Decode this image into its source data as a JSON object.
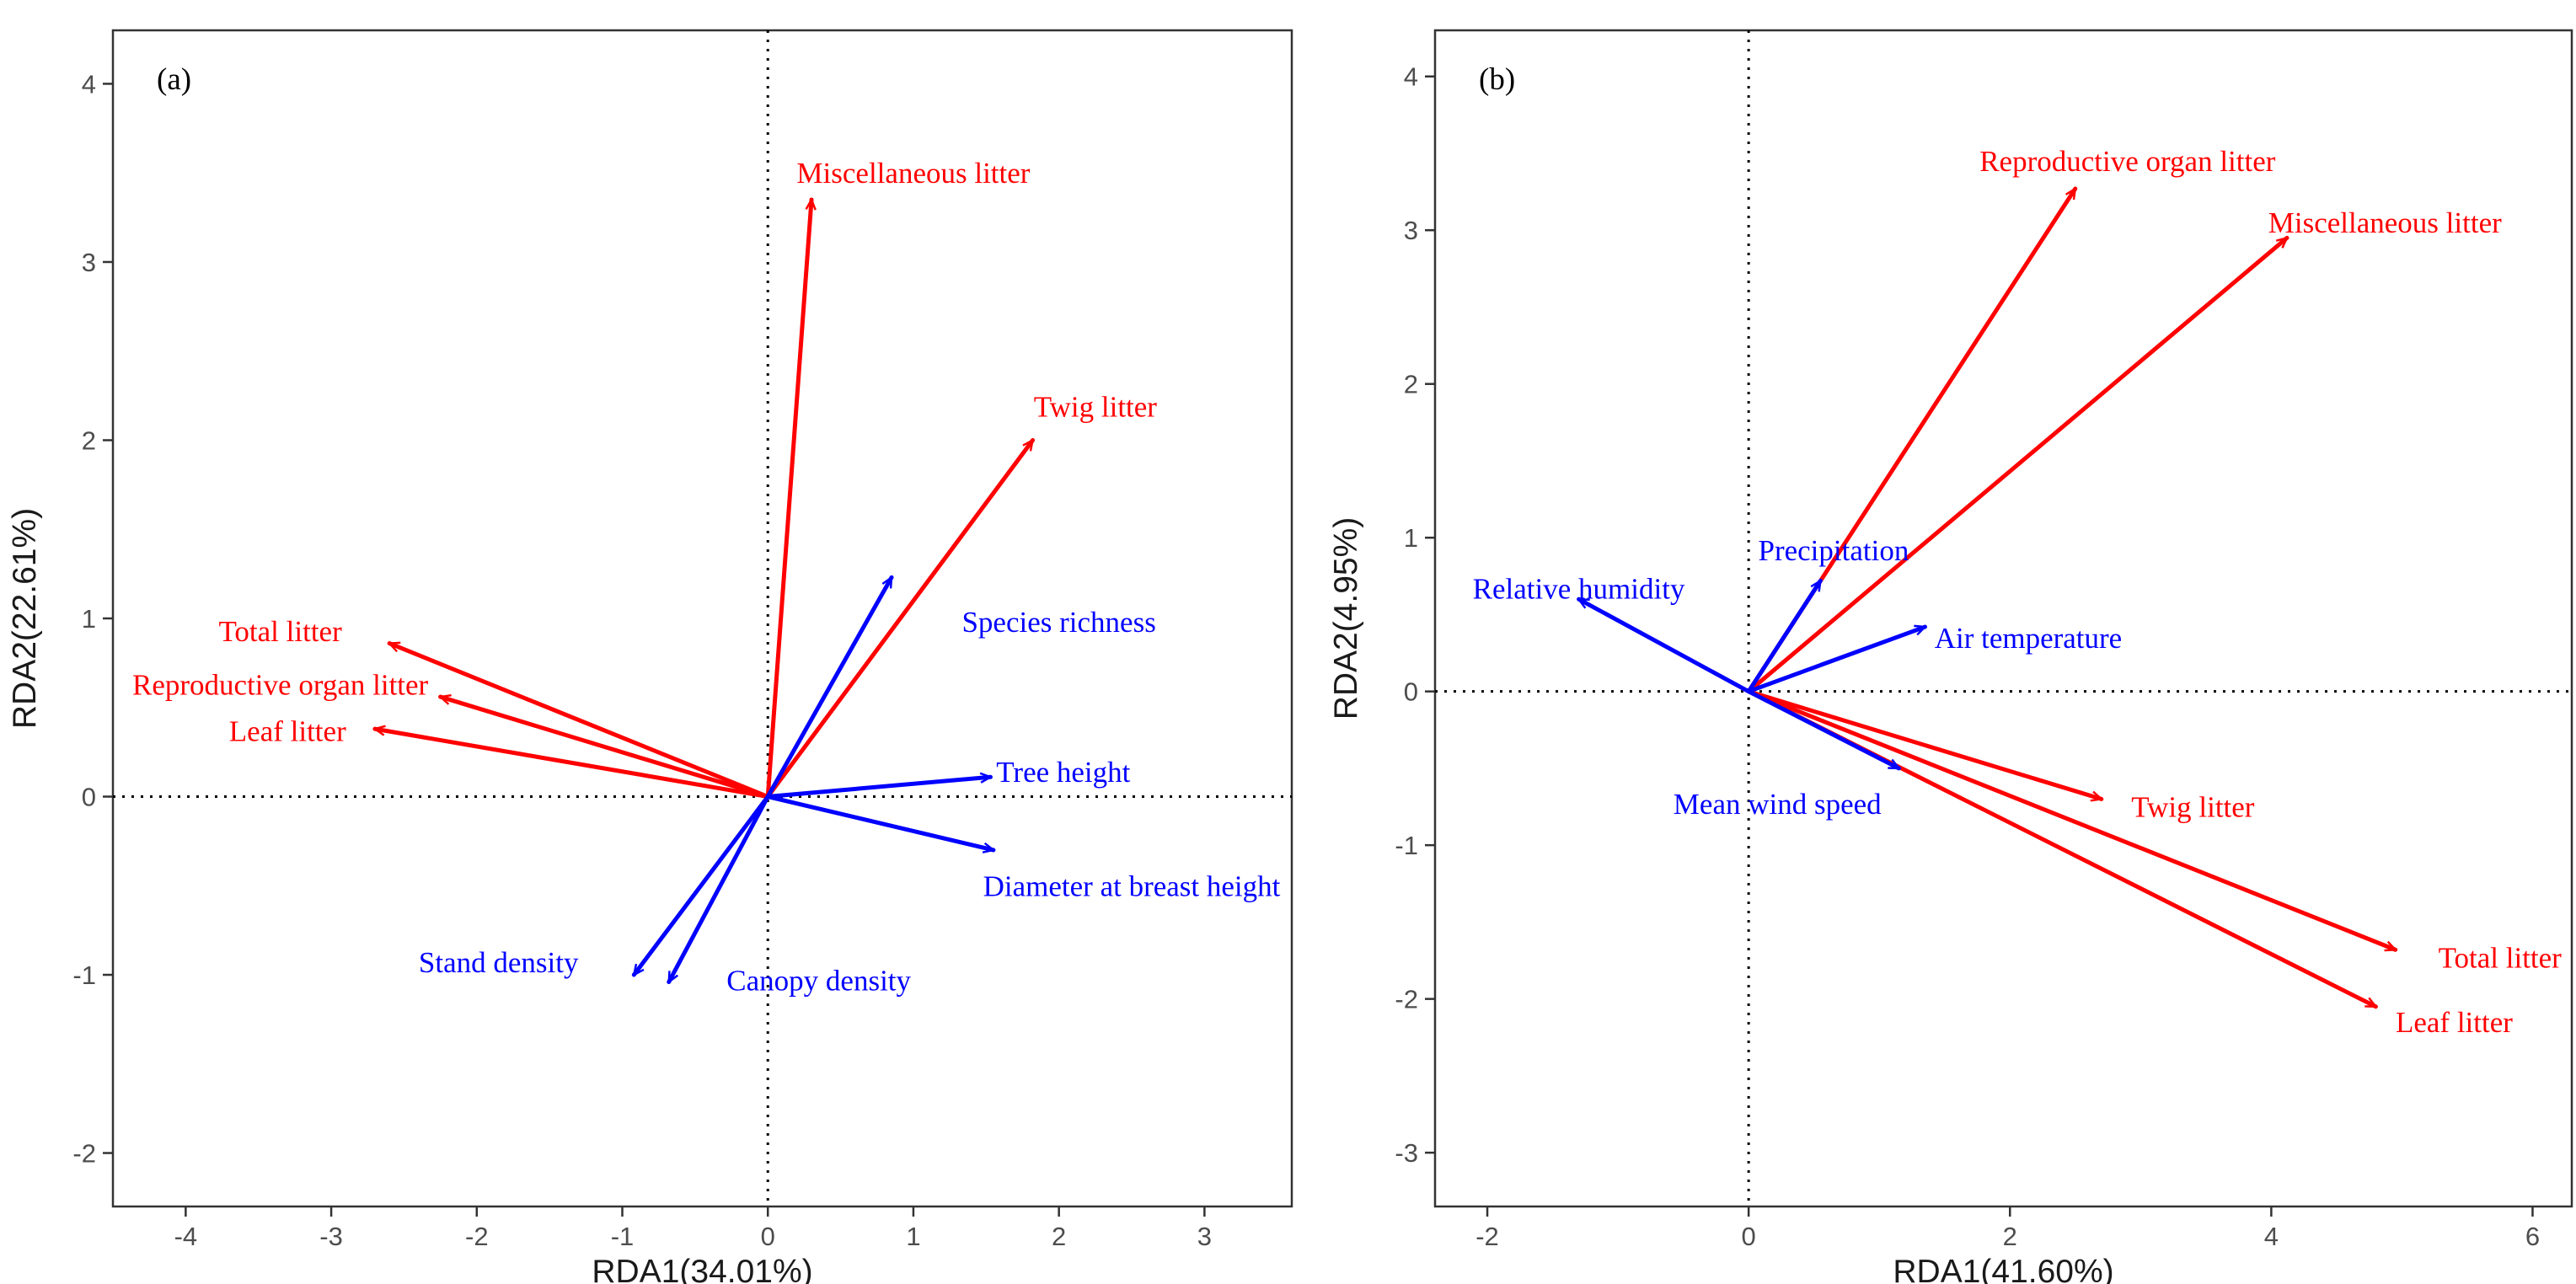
{
  "colors": {
    "response": "#ff0000",
    "explanatory": "#0000ff"
  },
  "chart_data": [
    {
      "type": "scatter",
      "subtype": "rda-biplot",
      "panel": "(a)",
      "xlabel": "RDA1(34.01%)",
      "ylabel": "RDA2(22.61%)",
      "xlim": [
        -4.5,
        3.6
      ],
      "ylim": [
        -2.3,
        4.3
      ],
      "xticks": [
        -4,
        -3,
        -2,
        -1,
        0,
        1,
        2,
        3
      ],
      "yticks": [
        -2,
        -1,
        0,
        1,
        2,
        3,
        4
      ],
      "grid": false,
      "reference_lines": [
        "x = 0",
        "y = 0"
      ],
      "vectors": [
        {
          "name": "Miscellaneous litter",
          "group": "response",
          "x": 0.3,
          "y": 3.35,
          "lx": 1.0,
          "ly": 3.5,
          "anchor": "middle"
        },
        {
          "name": "Twig litter",
          "group": "response",
          "x": 1.82,
          "y": 2.0,
          "lx": 2.25,
          "ly": 2.19,
          "anchor": "middle"
        },
        {
          "name": "Total litter",
          "group": "response",
          "x": -2.6,
          "y": 0.86,
          "lx": -3.35,
          "ly": 0.93,
          "anchor": "middle"
        },
        {
          "name": "Reproductive organ litter",
          "group": "response",
          "x": -2.25,
          "y": 0.56,
          "lx": -3.35,
          "ly": 0.63,
          "anchor": "middle"
        },
        {
          "name": "Leaf litter",
          "group": "response",
          "x": -2.7,
          "y": 0.38,
          "lx": -3.3,
          "ly": 0.37,
          "anchor": "middle"
        },
        {
          "name": "Species richness",
          "group": "explanatory",
          "x": 0.85,
          "y": 1.23,
          "lx": 2.0,
          "ly": 0.98,
          "anchor": "middle"
        },
        {
          "name": "Tree height",
          "group": "explanatory",
          "x": 1.53,
          "y": 0.11,
          "lx": 2.03,
          "ly": 0.14,
          "anchor": "middle"
        },
        {
          "name": "Diameter at breast height",
          "group": "explanatory",
          "x": 1.55,
          "y": -0.3,
          "lx": 2.5,
          "ly": -0.5,
          "anchor": "middle"
        },
        {
          "name": "Stand density",
          "group": "explanatory",
          "x": -0.92,
          "y": -1.0,
          "lx": -1.85,
          "ly": -0.93,
          "anchor": "middle"
        },
        {
          "name": "Canopy density",
          "group": "explanatory",
          "x": -0.68,
          "y": -1.04,
          "lx": 0.35,
          "ly": -1.03,
          "anchor": "middle"
        }
      ]
    },
    {
      "type": "scatter",
      "subtype": "rda-biplot",
      "panel": "(b)",
      "xlabel": "RDA1(41.60%)",
      "ylabel": "RDA2(4.95%)",
      "xlim": [
        -2.4,
        6.3
      ],
      "ylim": [
        -3.35,
        4.3
      ],
      "xticks": [
        -2,
        0,
        2,
        4,
        6
      ],
      "yticks": [
        -3,
        -2,
        -1,
        0,
        1,
        2,
        3,
        4
      ],
      "grid": false,
      "reference_lines": [
        "x = 0",
        "y = 0"
      ],
      "vectors": [
        {
          "name": "Reproductive organ litter",
          "group": "response",
          "x": 2.5,
          "y": 3.27,
          "lx": 2.9,
          "ly": 3.45,
          "anchor": "middle"
        },
        {
          "name": "Miscellaneous litter",
          "group": "response",
          "x": 4.12,
          "y": 2.95,
          "lx": 4.87,
          "ly": 3.05,
          "anchor": "middle"
        },
        {
          "name": "Twig litter",
          "group": "response",
          "x": 2.7,
          "y": -0.7,
          "lx": 3.4,
          "ly": -0.75,
          "anchor": "middle"
        },
        {
          "name": "Total litter",
          "group": "response",
          "x": 4.95,
          "y": -1.68,
          "lx": 5.75,
          "ly": -1.73,
          "anchor": "middle"
        },
        {
          "name": "Leaf litter",
          "group": "response",
          "x": 4.8,
          "y": -2.05,
          "lx": 5.4,
          "ly": -2.15,
          "anchor": "middle"
        },
        {
          "name": "Precipitation",
          "group": "explanatory",
          "x": 0.55,
          "y": 0.72,
          "lx": 0.65,
          "ly": 0.92,
          "anchor": "middle"
        },
        {
          "name": "Relative humidity",
          "group": "explanatory",
          "x": -1.3,
          "y": 0.6,
          "lx": -1.3,
          "ly": 0.67,
          "anchor": "middle"
        },
        {
          "name": "Air temperature",
          "group": "explanatory",
          "x": 1.35,
          "y": 0.42,
          "lx": 2.14,
          "ly": 0.35,
          "anchor": "middle"
        },
        {
          "name": "Mean wind speed",
          "group": "explanatory",
          "x": 1.15,
          "y": -0.5,
          "lx": 0.22,
          "ly": -0.73,
          "anchor": "middle"
        }
      ]
    }
  ]
}
